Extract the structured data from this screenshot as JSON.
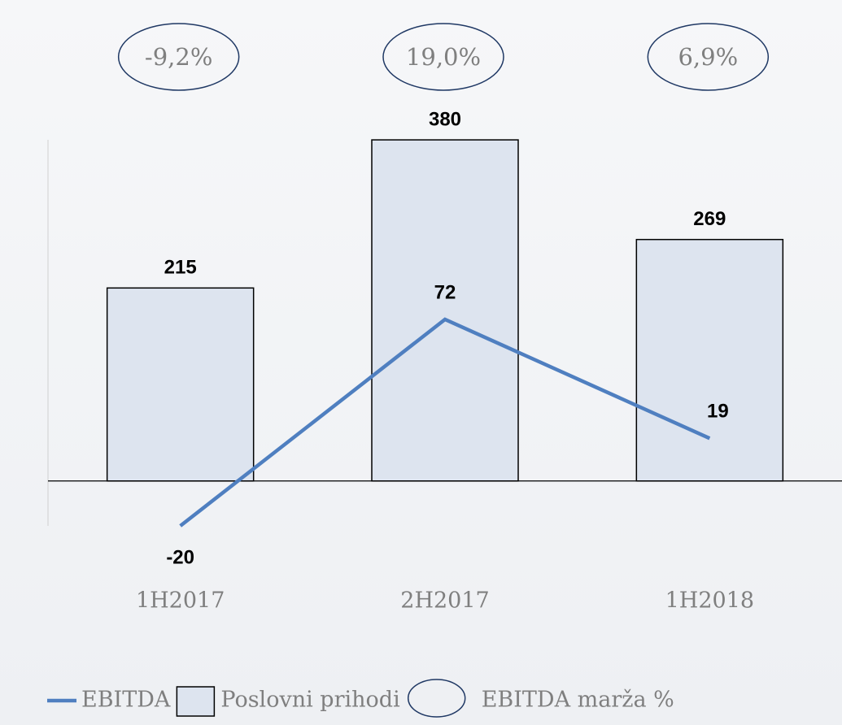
{
  "chart_data": {
    "type": "bar",
    "categories": [
      "1H2017",
      "2H2017",
      "1H2018"
    ],
    "series": [
      {
        "name": "Poslovni prihodi",
        "type": "bar",
        "color": "#dde4ef",
        "values": [
          215,
          380,
          269
        ]
      },
      {
        "name": "EBITDA",
        "type": "line",
        "axis": "y2",
        "color": "#4f7fc0",
        "values": [
          -20,
          72,
          19
        ]
      },
      {
        "name": "EBITDA marža %",
        "type": "ellipse",
        "color": "#1f3864",
        "values": [
          -9.2,
          19.0,
          6.9
        ],
        "value_labels": [
          "-9,2%",
          "19,0%",
          "6,9%"
        ]
      }
    ],
    "ylim": [
      -50,
      400
    ],
    "y2lim": [
      -20,
      160
    ],
    "legend": "bottom"
  }
}
